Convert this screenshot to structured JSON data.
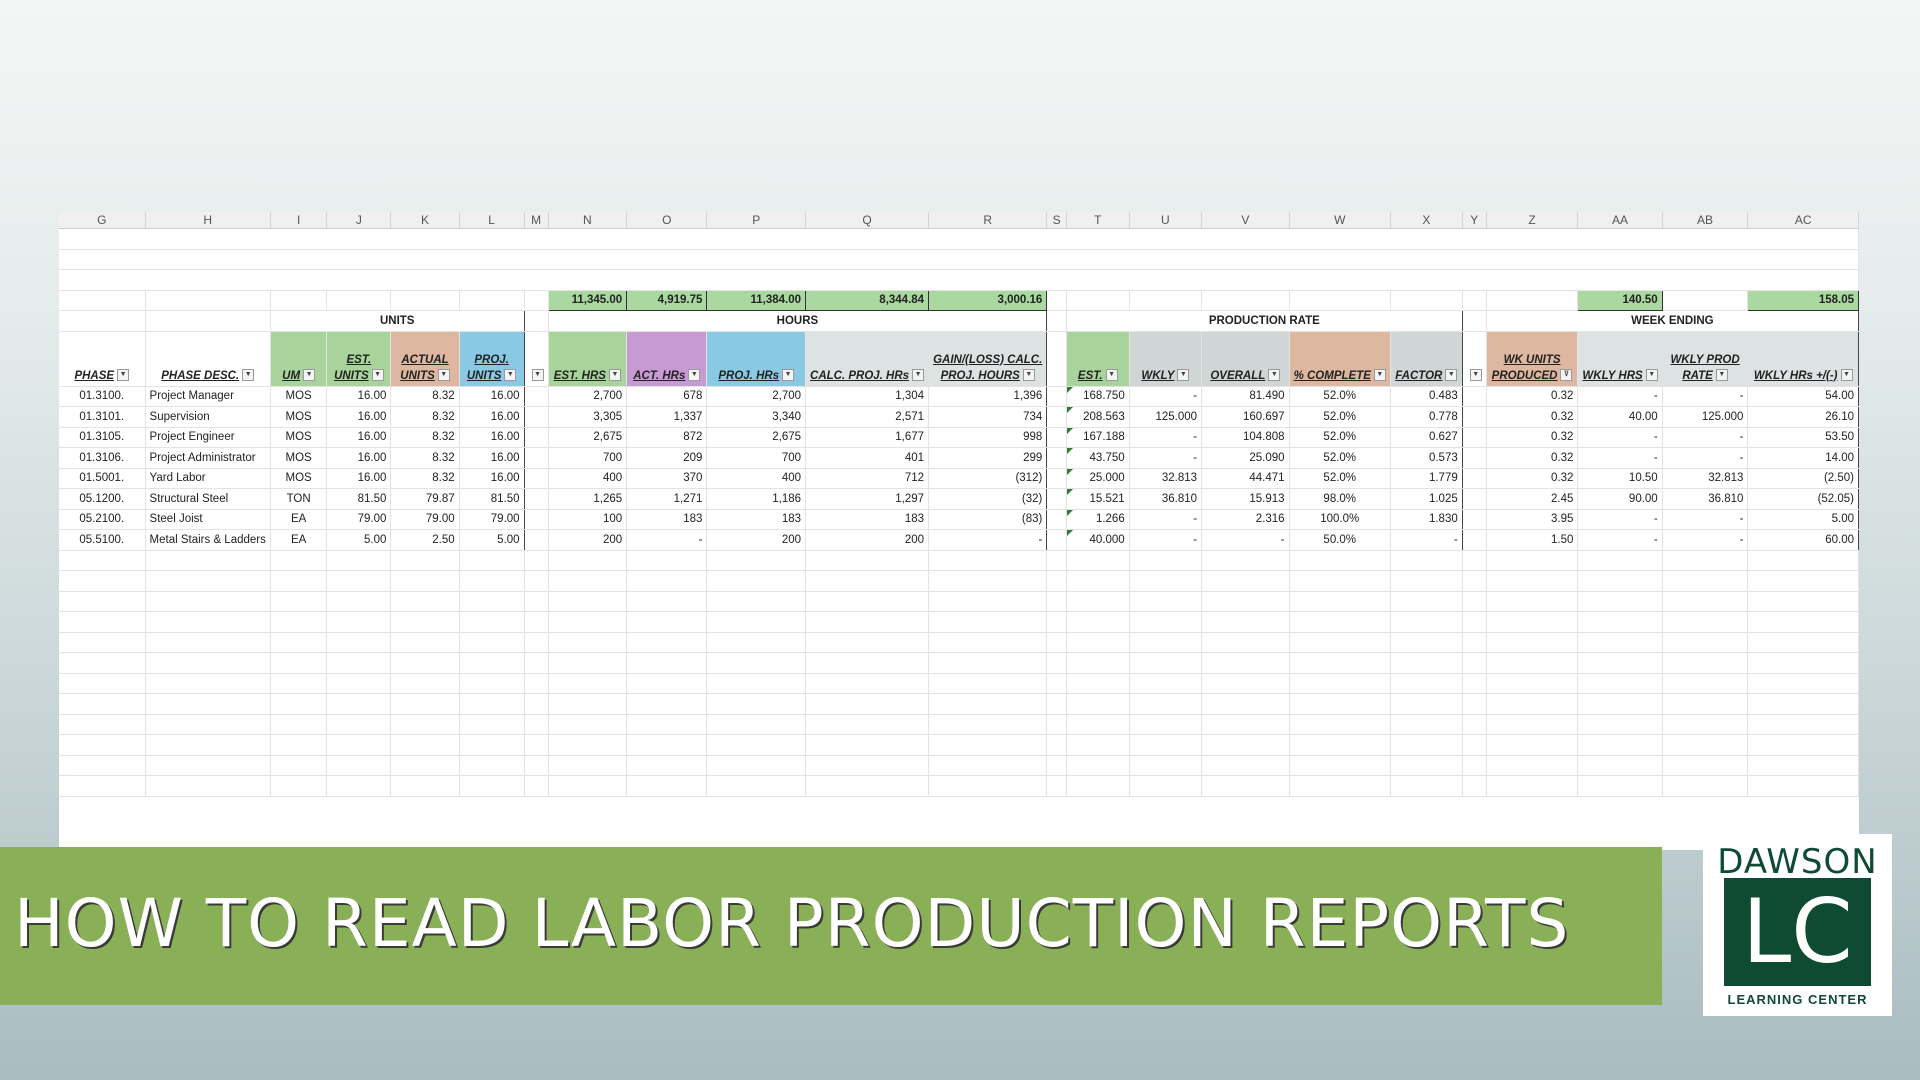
{
  "columns": [
    "G",
    "H",
    "I",
    "J",
    "K",
    "L",
    "M",
    "N",
    "O",
    "P",
    "Q",
    "R",
    "S",
    "T",
    "U",
    "V",
    "W",
    "X",
    "Y",
    "Z",
    "AA",
    "AB",
    "AC"
  ],
  "totals": {
    "est_hrs": "11,345.00",
    "act_hrs": "4,919.75",
    "proj_hrs": "11,384.00",
    "calc_proj_hrs": "8,344.84",
    "gain_loss": "3,000.16",
    "wkly_hrs": "140.50",
    "wkly_hrs_diff": "158.05"
  },
  "groups": {
    "units": "UNITS",
    "hours": "HOURS",
    "production_rate": "PRODUCTION RATE",
    "week_ending": "WEEK ENDING"
  },
  "headers": {
    "phase": "PHASE",
    "phase_desc": "PHASE DESC.",
    "um": "UM",
    "est_units": [
      "EST.",
      "UNITS"
    ],
    "actual_units": [
      "ACTUAL",
      "UNITS"
    ],
    "proj_units": [
      "PROJ.",
      "UNITS"
    ],
    "est_hrs": "EST. HRS",
    "act_hrs": "ACT. HRs",
    "proj_hrs": "PROJ. HRs",
    "calc_proj_hrs": "CALC. PROJ. HRs",
    "gain_loss": [
      "GAIN/(LOSS) CALC.",
      "PROJ. HOURS"
    ],
    "est": "EST.",
    "wkly": "WKLY",
    "overall": "OVERALL",
    "pct_complete": "% COMPLETE",
    "factor": "FACTOR",
    "wk_units": [
      "WK UNITS",
      "PRODUCED"
    ],
    "wkly_hrs": "WKLY HRS",
    "wkly_prod_rate": [
      "WKLY PROD",
      "RATE"
    ],
    "wkly_hrs_diff": "WKLY HRs +/(-)"
  },
  "rows": [
    {
      "phase": "01.3100.",
      "desc": "Project Manager",
      "um": "MOS",
      "est_units": "16.00",
      "actual_units": "8.32",
      "proj_units": "16.00",
      "est_hrs": "2,700",
      "act_hrs": "678",
      "proj_hrs": "2,700",
      "calc_proj_hrs": "1,304",
      "gain_loss": "1,396",
      "est": "168.750",
      "wkly": "-",
      "overall": "81.490",
      "pct": "52.0%",
      "factor": "0.483",
      "wk_units": "0.32",
      "wkly_hrs": "-",
      "wkly_rate": "-",
      "wkly_diff": "54.00"
    },
    {
      "phase": "01.3101.",
      "desc": "Supervision",
      "um": "MOS",
      "est_units": "16.00",
      "actual_units": "8.32",
      "proj_units": "16.00",
      "est_hrs": "3,305",
      "act_hrs": "1,337",
      "proj_hrs": "3,340",
      "calc_proj_hrs": "2,571",
      "gain_loss": "734",
      "est": "208.563",
      "wkly": "125.000",
      "overall": "160.697",
      "pct": "52.0%",
      "factor": "0.778",
      "wk_units": "0.32",
      "wkly_hrs": "40.00",
      "wkly_rate": "125.000",
      "wkly_diff": "26.10"
    },
    {
      "phase": "01.3105.",
      "desc": "Project Engineer",
      "um": "MOS",
      "est_units": "16.00",
      "actual_units": "8.32",
      "proj_units": "16.00",
      "est_hrs": "2,675",
      "act_hrs": "872",
      "proj_hrs": "2,675",
      "calc_proj_hrs": "1,677",
      "gain_loss": "998",
      "est": "167.188",
      "wkly": "-",
      "overall": "104.808",
      "pct": "52.0%",
      "factor": "0.627",
      "wk_units": "0.32",
      "wkly_hrs": "-",
      "wkly_rate": "-",
      "wkly_diff": "53.50"
    },
    {
      "phase": "01.3106.",
      "desc": "Project Administrator",
      "um": "MOS",
      "est_units": "16.00",
      "actual_units": "8.32",
      "proj_units": "16.00",
      "est_hrs": "700",
      "act_hrs": "209",
      "proj_hrs": "700",
      "calc_proj_hrs": "401",
      "gain_loss": "299",
      "est": "43.750",
      "wkly": "-",
      "overall": "25.090",
      "pct": "52.0%",
      "factor": "0.573",
      "wk_units": "0.32",
      "wkly_hrs": "-",
      "wkly_rate": "-",
      "wkly_diff": "14.00"
    },
    {
      "phase": "01.5001.",
      "desc": "Yard Labor",
      "um": "MOS",
      "est_units": "16.00",
      "actual_units": "8.32",
      "proj_units": "16.00",
      "est_hrs": "400",
      "act_hrs": "370",
      "proj_hrs": "400",
      "calc_proj_hrs": "712",
      "gain_loss": "(312)",
      "est": "25.000",
      "wkly": "32.813",
      "overall": "44.471",
      "pct": "52.0%",
      "factor": "1.779",
      "wk_units": "0.32",
      "wkly_hrs": "10.50",
      "wkly_rate": "32.813",
      "wkly_diff": "(2.50)"
    },
    {
      "phase": "05.1200.",
      "desc": "Structural Steel",
      "um": "TON",
      "est_units": "81.50",
      "actual_units": "79.87",
      "proj_units": "81.50",
      "est_hrs": "1,265",
      "act_hrs": "1,271",
      "proj_hrs": "1,186",
      "calc_proj_hrs": "1,297",
      "gain_loss": "(32)",
      "est": "15.521",
      "wkly": "36.810",
      "overall": "15.913",
      "pct": "98.0%",
      "factor": "1.025",
      "wk_units": "2.45",
      "wkly_hrs": "90.00",
      "wkly_rate": "36.810",
      "wkly_diff": "(52.05)"
    },
    {
      "phase": "05.2100.",
      "desc": "Steel Joist",
      "um": "EA",
      "est_units": "79.00",
      "actual_units": "79.00",
      "proj_units": "79.00",
      "est_hrs": "100",
      "act_hrs": "183",
      "proj_hrs": "183",
      "calc_proj_hrs": "183",
      "gain_loss": "(83)",
      "est": "1.266",
      "wkly": "-",
      "overall": "2.316",
      "pct": "100.0%",
      "factor": "1.830",
      "wk_units": "3.95",
      "wkly_hrs": "-",
      "wkly_rate": "-",
      "wkly_diff": "5.00"
    },
    {
      "phase": "05.5100.",
      "desc": "Metal Stairs & Ladders",
      "um": "EA",
      "est_units": "5.00",
      "actual_units": "2.50",
      "proj_units": "5.00",
      "est_hrs": "200",
      "act_hrs": "-",
      "proj_hrs": "200",
      "calc_proj_hrs": "200",
      "gain_loss": "-",
      "est": "40.000",
      "wkly": "-",
      "overall": "-",
      "pct": "50.0%",
      "factor": "-",
      "wk_units": "1.50",
      "wkly_hrs": "-",
      "wkly_rate": "-",
      "wkly_diff": "60.00"
    }
  ],
  "banner": {
    "title": "HOW TO READ LABOR PRODUCTION REPORTS"
  },
  "logo": {
    "word": "DAWSON",
    "letters": "LC",
    "subtitle": "LEARNING CENTER"
  },
  "colors": {
    "total_fill": "#a9d8a0",
    "group_text": "#1f2fa8",
    "green_header": "#a8d49b",
    "purple_header": "#c79ad3",
    "blue_header": "#8ac9e4",
    "orange_header": "#ddb7a0",
    "banner": "#8ab057",
    "logo_green": "#0f4a32"
  }
}
